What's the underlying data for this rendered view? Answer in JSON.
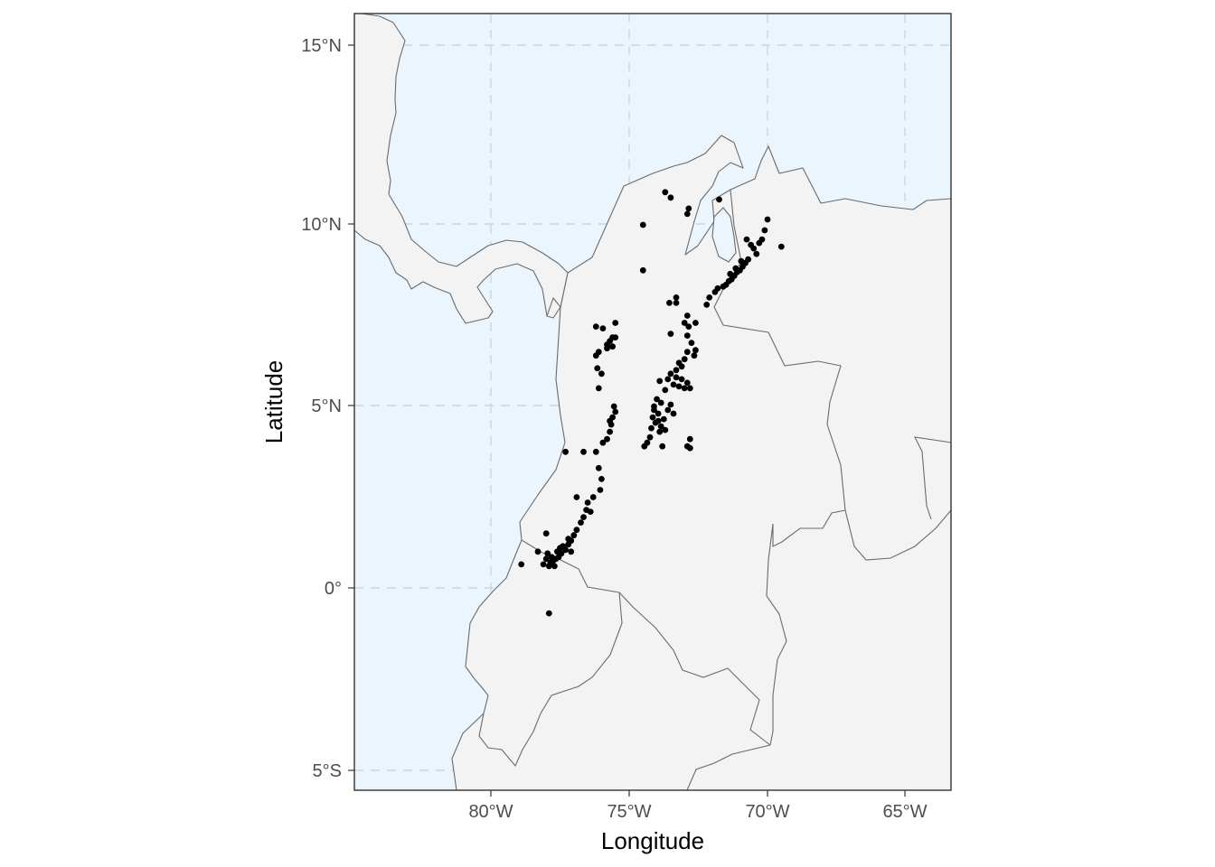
{
  "chart_data": {
    "type": "scatter",
    "title": "",
    "xlabel": "Longitude",
    "ylabel": "Latitude",
    "xlim": [
      -85,
      -63.4
    ],
    "ylim": [
      -5.55,
      15.9
    ],
    "x_ticks": [
      {
        "value": -80,
        "label": "80°W"
      },
      {
        "value": -75,
        "label": "75°W"
      },
      {
        "value": -70,
        "label": "70°W"
      },
      {
        "value": -65,
        "label": "65°W"
      }
    ],
    "y_ticks": [
      {
        "value": 15,
        "label": "15°N"
      },
      {
        "value": 10,
        "label": "10°N"
      },
      {
        "value": 5,
        "label": "5°N"
      },
      {
        "value": 0,
        "label": "0°"
      },
      {
        "value": -5,
        "label": "5°S"
      }
    ],
    "grid": true,
    "colors": {
      "ocean": "#eaf5fe",
      "land": "#f3f3f3",
      "border": "#6b6b6b",
      "points": "#000000"
    },
    "points": [
      [
        -73.7,
        10.9
      ],
      [
        -73.5,
        10.75
      ],
      [
        -72.85,
        10.45
      ],
      [
        -72.9,
        10.3
      ],
      [
        -71.75,
        10.7
      ],
      [
        -74.5,
        10.0
      ],
      [
        -74.5,
        8.75
      ],
      [
        -70.0,
        10.15
      ],
      [
        -69.5,
        9.4
      ],
      [
        -70.1,
        9.85
      ],
      [
        -70.2,
        9.6
      ],
      [
        -70.3,
        9.5
      ],
      [
        -70.5,
        9.35
      ],
      [
        -70.6,
        9.45
      ],
      [
        -70.4,
        9.2
      ],
      [
        -70.7,
        9.05
      ],
      [
        -70.8,
        8.95
      ],
      [
        -70.9,
        8.85
      ],
      [
        -71.0,
        8.75
      ],
      [
        -71.1,
        8.7
      ],
      [
        -71.2,
        8.6
      ],
      [
        -71.3,
        8.5
      ],
      [
        -71.4,
        8.45
      ],
      [
        -71.5,
        8.35
      ],
      [
        -71.6,
        8.3
      ],
      [
        -71.8,
        8.25
      ],
      [
        -71.9,
        8.15
      ],
      [
        -72.1,
        8.0
      ],
      [
        -72.2,
        7.8
      ],
      [
        -70.95,
        9.0
      ],
      [
        -71.15,
        8.8
      ],
      [
        -71.35,
        8.65
      ],
      [
        -70.75,
        9.6
      ],
      [
        -73.55,
        7.85
      ],
      [
        -73.3,
        8.0
      ],
      [
        -73.3,
        7.85
      ],
      [
        -72.9,
        7.5
      ],
      [
        -72.6,
        7.3
      ],
      [
        -73.0,
        7.3
      ],
      [
        -72.85,
        7.2
      ],
      [
        -73.5,
        7.0
      ],
      [
        -72.9,
        6.95
      ],
      [
        -72.75,
        6.75
      ],
      [
        -72.6,
        6.55
      ],
      [
        -72.65,
        6.4
      ],
      [
        -72.9,
        6.5
      ],
      [
        -73.0,
        6.3
      ],
      [
        -73.2,
        6.2
      ],
      [
        -73.3,
        6.0
      ],
      [
        -73.1,
        6.1
      ],
      [
        -73.5,
        5.9
      ],
      [
        -73.6,
        5.75
      ],
      [
        -73.9,
        5.7
      ],
      [
        -73.4,
        5.6
      ],
      [
        -73.2,
        5.55
      ],
      [
        -73.0,
        5.5
      ],
      [
        -73.7,
        5.45
      ],
      [
        -72.8,
        5.5
      ],
      [
        -73.1,
        5.75
      ],
      [
        -72.9,
        5.65
      ],
      [
        -73.3,
        5.8
      ],
      [
        -74.0,
        5.2
      ],
      [
        -74.1,
        5.0
      ],
      [
        -73.95,
        4.8
      ],
      [
        -74.15,
        4.7
      ],
      [
        -74.05,
        4.55
      ],
      [
        -73.85,
        4.45
      ],
      [
        -74.2,
        4.4
      ],
      [
        -73.9,
        4.3
      ],
      [
        -73.7,
        4.35
      ],
      [
        -74.25,
        4.15
      ],
      [
        -74.35,
        4.0
      ],
      [
        -74.45,
        3.9
      ],
      [
        -73.75,
        4.65
      ],
      [
        -73.6,
        4.9
      ],
      [
        -73.4,
        4.8
      ],
      [
        -73.85,
        5.1
      ],
      [
        -73.5,
        5.05
      ],
      [
        -73.8,
        3.9
      ],
      [
        -72.8,
        4.1
      ],
      [
        -72.9,
        3.9
      ],
      [
        -72.8,
        3.85
      ],
      [
        -74.1,
        4.9
      ],
      [
        -73.95,
        4.6
      ],
      [
        -76.2,
        7.2
      ],
      [
        -75.5,
        7.3
      ],
      [
        -75.95,
        7.15
      ],
      [
        -75.7,
        6.8
      ],
      [
        -75.6,
        6.65
      ],
      [
        -75.8,
        6.6
      ],
      [
        -75.5,
        6.9
      ],
      [
        -76.1,
        6.5
      ],
      [
        -76.2,
        6.4
      ],
      [
        -76.15,
        6.05
      ],
      [
        -76.1,
        5.5
      ],
      [
        -75.55,
        5.0
      ],
      [
        -75.5,
        4.85
      ],
      [
        -75.6,
        4.7
      ],
      [
        -75.65,
        4.5
      ],
      [
        -75.7,
        4.3
      ],
      [
        -75.8,
        4.1
      ],
      [
        -75.95,
        4.0
      ],
      [
        -76.2,
        3.75
      ],
      [
        -76.65,
        3.75
      ],
      [
        -77.3,
        3.75
      ],
      [
        -76.1,
        3.3
      ],
      [
        -76.0,
        3.0
      ],
      [
        -76.05,
        2.7
      ],
      [
        -76.3,
        2.5
      ],
      [
        -76.5,
        2.35
      ],
      [
        -76.55,
        2.15
      ],
      [
        -76.65,
        1.95
      ],
      [
        -76.75,
        1.8
      ],
      [
        -76.9,
        1.6
      ],
      [
        -77.0,
        1.45
      ],
      [
        -77.1,
        1.3
      ],
      [
        -77.2,
        1.2
      ],
      [
        -77.3,
        1.05
      ],
      [
        -77.45,
        0.95
      ],
      [
        -77.55,
        0.85
      ],
      [
        -77.65,
        0.8
      ],
      [
        -77.75,
        0.75
      ],
      [
        -77.85,
        0.7
      ],
      [
        -77.9,
        0.6
      ],
      [
        -77.7,
        0.6
      ],
      [
        -77.6,
        1.0
      ],
      [
        -77.8,
        0.85
      ],
      [
        -78.0,
        0.8
      ],
      [
        -78.1,
        0.65
      ],
      [
        -77.4,
        1.15
      ],
      [
        -77.2,
        1.35
      ],
      [
        -78.0,
        1.5
      ],
      [
        -78.3,
        1.0
      ],
      [
        -78.9,
        0.65
      ],
      [
        -77.9,
        -0.7
      ],
      [
        -75.8,
        6.7
      ],
      [
        -75.6,
        6.9
      ],
      [
        -76.0,
        5.9
      ],
      [
        -75.7,
        4.6
      ],
      [
        -76.9,
        2.5
      ],
      [
        -76.4,
        2.1
      ],
      [
        -77.5,
        1.1
      ],
      [
        -77.1,
        1.0
      ],
      [
        -77.95,
        0.95
      ]
    ]
  }
}
